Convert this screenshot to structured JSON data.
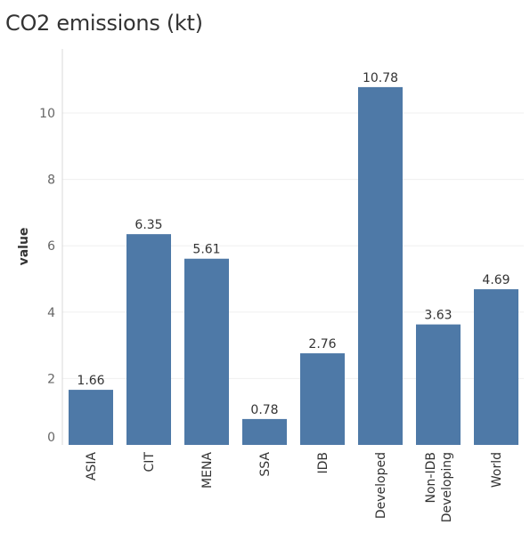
{
  "chart_data": {
    "type": "bar",
    "title": "CO2 emissions (kt)",
    "ylabel": "value",
    "xlabel": "",
    "categories": [
      [
        "ASIA"
      ],
      [
        "CIT"
      ],
      [
        "MENA"
      ],
      [
        "SSA"
      ],
      [
        "IDB"
      ],
      [
        "Developed"
      ],
      [
        "Non-IDB",
        "Developing"
      ],
      [
        "World"
      ]
    ],
    "values": [
      1.66,
      6.35,
      5.61,
      0.78,
      2.76,
      10.78,
      3.63,
      4.69
    ],
    "value_labels": [
      "1.66",
      "6.35",
      "5.61",
      "0.78",
      "2.76",
      "10.78",
      "3.63",
      "4.69"
    ],
    "yticks": [
      0,
      2,
      4,
      6,
      8,
      10
    ],
    "ylim": [
      0,
      11.5
    ],
    "grid": true,
    "bar_color": "#4e79a7",
    "grid_color": "#efefef",
    "axis_color": "#d9d9d9"
  }
}
